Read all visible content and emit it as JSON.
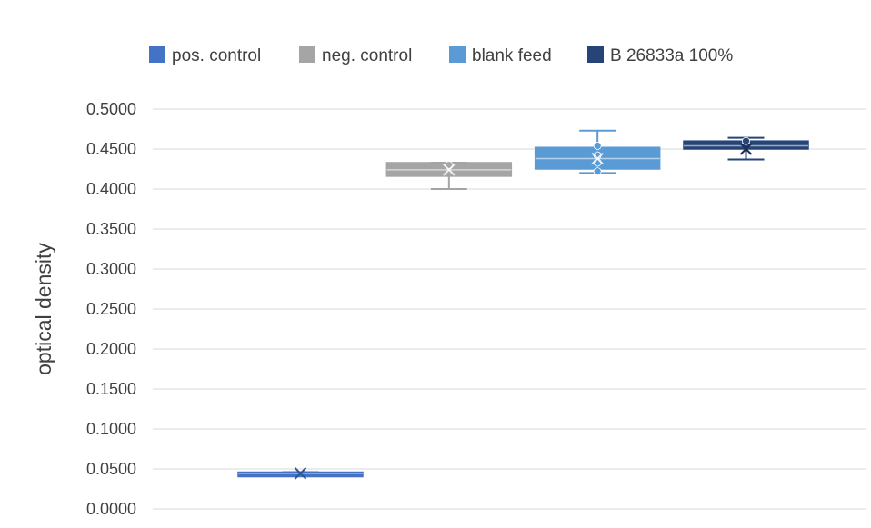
{
  "chart_data": {
    "type": "box",
    "title": "",
    "xlabel": "",
    "ylabel": "optical density",
    "ylim": [
      0,
      0.5
    ],
    "ytick_step": 0.05,
    "ytick_labels": [
      "0.0000",
      "0.0500",
      "0.1000",
      "0.1500",
      "0.2000",
      "0.2500",
      "0.3000",
      "0.3500",
      "0.4000",
      "0.4500",
      "0.5000"
    ],
    "grid": true,
    "legend_position": "top",
    "series": [
      {
        "name": "pos. control",
        "color": "#4472c4",
        "min": 0.043,
        "q1": 0.043,
        "median": 0.0445,
        "q3": 0.046,
        "max": 0.046,
        "mean": 0.0445
      },
      {
        "name": "neg. control",
        "color": "#a5a5a5",
        "min": 0.4,
        "q1": 0.416,
        "median": 0.424,
        "q3": 0.433,
        "max": 0.433,
        "mean": 0.424,
        "points": [
          0.43
        ]
      },
      {
        "name": "blank feed",
        "color": "#5b9bd5",
        "min": 0.42,
        "q1": 0.425,
        "median": 0.438,
        "q3": 0.452,
        "max": 0.473,
        "mean": 0.438,
        "points": [
          0.422,
          0.433,
          0.442,
          0.454
        ]
      },
      {
        "name": "B 26833a 100%",
        "color": "#264478",
        "min": 0.437,
        "q1": 0.45,
        "median": 0.454,
        "q3": 0.46,
        "max": 0.464,
        "mean": 0.45,
        "points": [
          0.456,
          0.46
        ]
      }
    ]
  }
}
